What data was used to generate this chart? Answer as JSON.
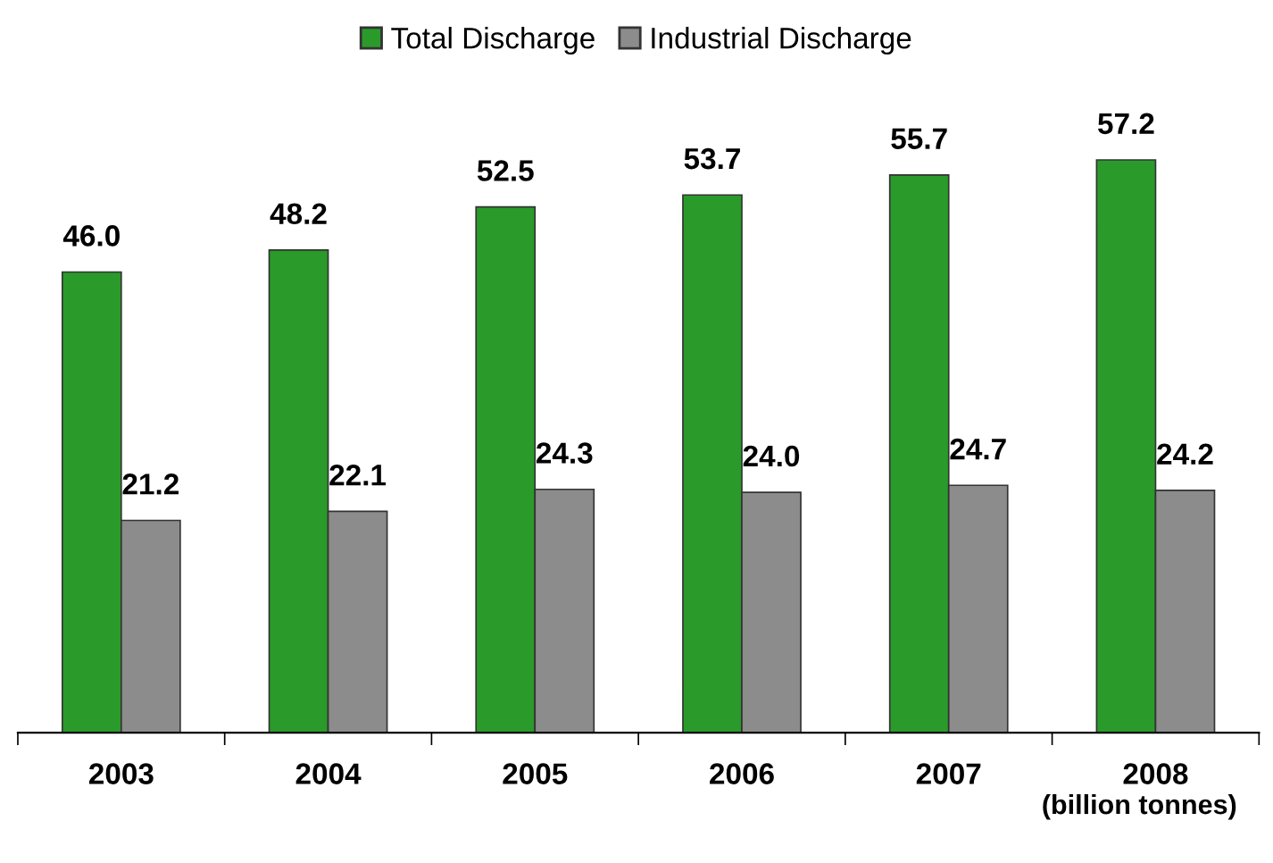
{
  "chart_data": {
    "type": "bar",
    "categories": [
      "2003",
      "2004",
      "2005",
      "2006",
      "2007",
      "2008"
    ],
    "series": [
      {
        "name": "Total Discharge",
        "color": "#2a9a2a",
        "values": [
          46.0,
          48.2,
          52.5,
          53.7,
          55.7,
          57.2
        ],
        "value_labels": [
          "46.0",
          "48.2",
          "52.5",
          "53.7",
          "55.7",
          "57.2"
        ]
      },
      {
        "name": "Industrial Discharge",
        "color": "#8c8c8c",
        "values": [
          21.2,
          22.1,
          24.3,
          24.0,
          24.7,
          24.2
        ],
        "value_labels": [
          "21.2",
          "22.1",
          "24.3",
          "24.0",
          "24.7",
          "24.2"
        ]
      }
    ],
    "legend": "top",
    "grid": false,
    "annotations": [
      "(billion tonnes)"
    ]
  }
}
